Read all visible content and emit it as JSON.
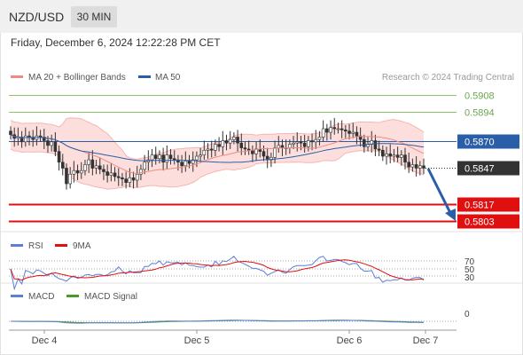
{
  "header": {
    "pair": "NZD/USD",
    "timeframe": "30 MIN"
  },
  "datetime": "Friday, December 6, 2024 12:22:28 PM CET",
  "legend": [
    {
      "label": "MA 20 + Bollinger Bands",
      "color": "#f08a84"
    },
    {
      "label": "MA 50",
      "color": "#2a5ea8"
    }
  ],
  "credit": "Research © 2024 Trading Central",
  "levels": [
    {
      "label": "0.5908",
      "value": 0.5908,
      "color": "#8dc46a",
      "style": "text"
    },
    {
      "label": "0.5894",
      "value": 0.5894,
      "color": "#8dc46a",
      "style": "text"
    },
    {
      "label": "0.5870",
      "value": 0.587,
      "color": "#2a5ea8",
      "style": "box"
    },
    {
      "label": "0.5847",
      "value": 0.5847,
      "color": "#333333",
      "style": "box"
    },
    {
      "label": "0.5817",
      "value": 0.5817,
      "color": "#e01010",
      "style": "box"
    },
    {
      "label": "0.5803",
      "value": 0.5803,
      "color": "#e01010",
      "style": "box"
    }
  ],
  "rsi_legend": [
    {
      "label": "RSI",
      "color": "#5b7fd6"
    },
    {
      "label": "9MA",
      "color": "#e01010"
    }
  ],
  "rsi_levels": [
    "70",
    "50",
    "30"
  ],
  "macd_legend": [
    {
      "label": "MACD",
      "color": "#5b7fd6"
    },
    {
      "label": "MACD Signal",
      "color": "#4a9a2a"
    }
  ],
  "macd_zero": "0",
  "x_labels": [
    "Dec 4",
    "Dec 5",
    "Dec 6",
    "Dec 7"
  ],
  "chart_data": {
    "type": "candlestick",
    "instrument": "NZD/USD",
    "interval": "30 MIN",
    "ylim": [
      0.58,
      0.5915
    ],
    "close": [
      0.5875,
      0.5872,
      0.5873,
      0.5869,
      0.5874,
      0.5873,
      0.5871,
      0.5874,
      0.5873,
      0.587,
      0.5866,
      0.5869,
      0.5861,
      0.5852,
      0.5847,
      0.5834,
      0.5842,
      0.5845,
      0.5843,
      0.5845,
      0.585,
      0.5854,
      0.5847,
      0.5849,
      0.5846,
      0.5844,
      0.5841,
      0.5843,
      0.584,
      0.5839,
      0.5838,
      0.5835,
      0.5839,
      0.5837,
      0.5842,
      0.5846,
      0.5852,
      0.5854,
      0.5858,
      0.5855,
      0.5858,
      0.5852,
      0.5858,
      0.5855,
      0.5854,
      0.5852,
      0.5849,
      0.5853,
      0.5851,
      0.5854,
      0.5857,
      0.5858,
      0.5862,
      0.5863,
      0.5862,
      0.5867,
      0.5865,
      0.587,
      0.5868,
      0.5871,
      0.5873,
      0.5868,
      0.5864,
      0.5863,
      0.5862,
      0.5859,
      0.5863,
      0.5861,
      0.5857,
      0.5854,
      0.5856,
      0.5864,
      0.5866,
      0.5864,
      0.5864,
      0.5867,
      0.5868,
      0.5869,
      0.5868,
      0.5865,
      0.587,
      0.5869,
      0.5871,
      0.5873,
      0.588,
      0.5877,
      0.5881,
      0.588,
      0.588,
      0.5879,
      0.5878,
      0.5876,
      0.5877,
      0.5874,
      0.5871,
      0.5865,
      0.5867,
      0.587,
      0.5863,
      0.5862,
      0.5857,
      0.5859,
      0.5857,
      0.5858,
      0.5856,
      0.5858,
      0.5852,
      0.5848,
      0.585,
      0.5847,
      0.5849,
      0.5847
    ]
  }
}
